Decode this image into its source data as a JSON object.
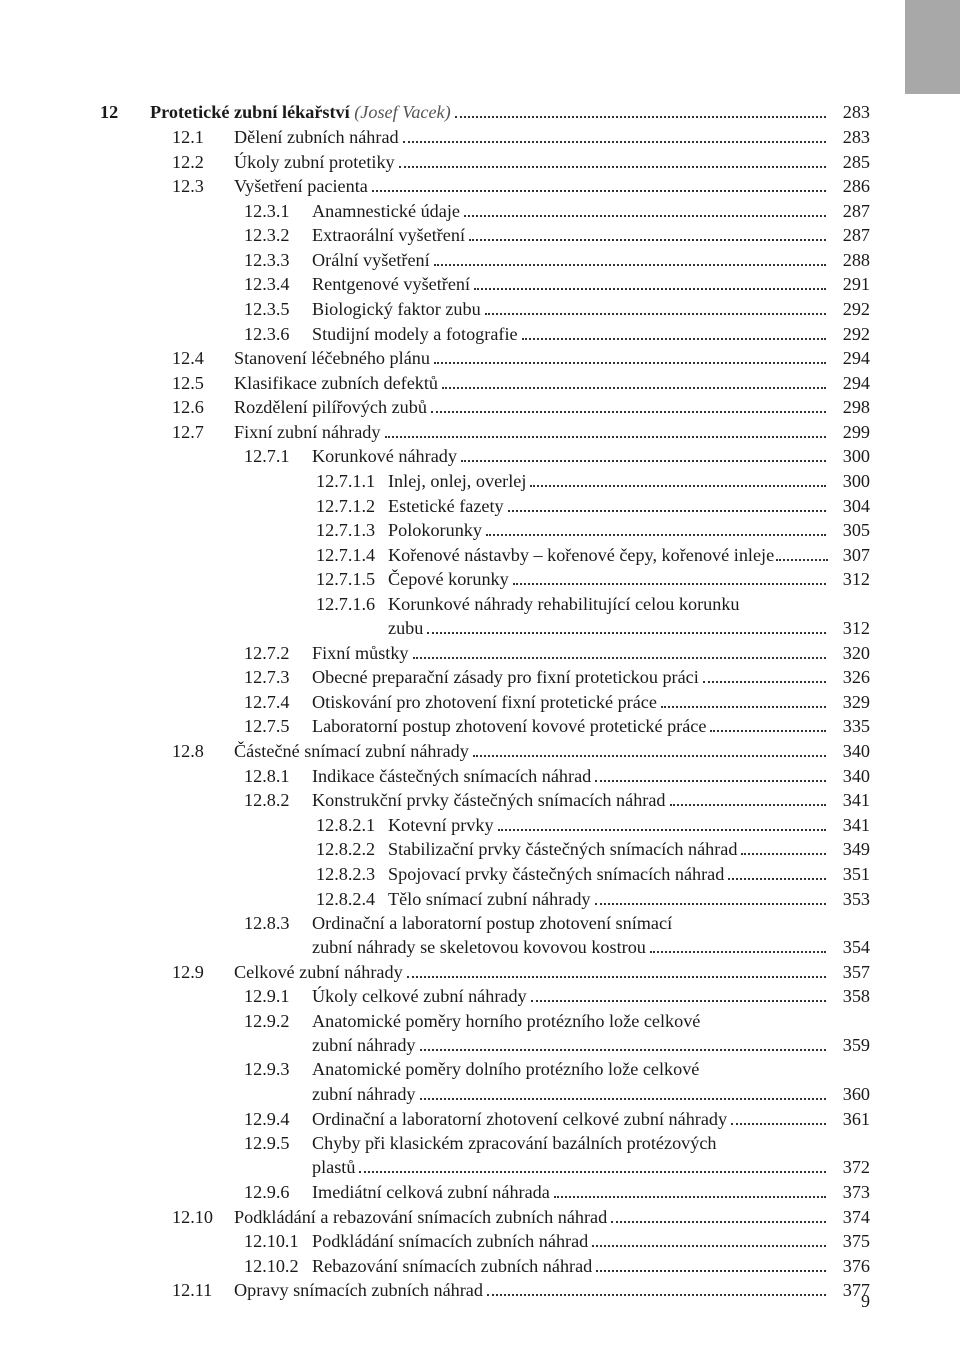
{
  "page_number": "9",
  "tab_color": "#a8a8a8",
  "chapter": {
    "num": "12",
    "title": "Protetické zubní lékařství",
    "author": "(Josef Vacek)",
    "page": "283"
  },
  "entries": [
    {
      "lvl": 1,
      "num": "12.1",
      "title": "Dělení zubních náhrad",
      "page": "283"
    },
    {
      "lvl": 1,
      "num": "12.2",
      "title": "Úkoly zubní protetiky",
      "page": "285"
    },
    {
      "lvl": 1,
      "num": "12.3",
      "title": "Vyšetření pacienta",
      "page": "286"
    },
    {
      "lvl": 2,
      "num": "12.3.1",
      "title": "Anamnestické údaje",
      "page": "287"
    },
    {
      "lvl": 2,
      "num": "12.3.2",
      "title": "Extraorální vyšetření",
      "page": "287"
    },
    {
      "lvl": 2,
      "num": "12.3.3",
      "title": "Orální vyšetření",
      "page": "288"
    },
    {
      "lvl": 2,
      "num": "12.3.4",
      "title": "Rentgenové vyšetření",
      "page": "291"
    },
    {
      "lvl": 2,
      "num": "12.3.5",
      "title": "Biologický faktor zubu",
      "page": "292"
    },
    {
      "lvl": 2,
      "num": "12.3.6",
      "title": "Studijní modely a fotografie",
      "page": "292"
    },
    {
      "lvl": 1,
      "num": "12.4",
      "title": "Stanovení léčebného plánu",
      "page": "294"
    },
    {
      "lvl": 1,
      "num": "12.5",
      "title": "Klasifikace zubních defektů",
      "page": "294"
    },
    {
      "lvl": 1,
      "num": "12.6",
      "title": "Rozdělení pilířových zubů",
      "page": "298"
    },
    {
      "lvl": 1,
      "num": "12.7",
      "title": "Fixní zubní náhrady",
      "page": "299"
    },
    {
      "lvl": 2,
      "num": "12.7.1",
      "title": "Korunkové náhrady",
      "page": "300"
    },
    {
      "lvl": 3,
      "num": "12.7.1.1",
      "title": "Inlej, onlej, overlej",
      "page": "300"
    },
    {
      "lvl": 3,
      "num": "12.7.1.2",
      "title": "Estetické fazety",
      "page": "304"
    },
    {
      "lvl": 3,
      "num": "12.7.1.3",
      "title": "Polokorunky",
      "page": "305"
    },
    {
      "lvl": 3,
      "num": "12.7.1.4",
      "title": "Kořenové nástavby – kořenové čepy, kořenové inleje",
      "page": "307",
      "tight": true
    },
    {
      "lvl": 3,
      "num": "12.7.1.5",
      "title": "Čepové korunky",
      "page": "312"
    },
    {
      "lvl": 3,
      "num": "12.7.1.6",
      "title": "Korunkové náhrady rehabilitující celou korunku",
      "wrap": true
    },
    {
      "lvl": "c3",
      "title": "zubu",
      "page": "312"
    },
    {
      "lvl": 2,
      "num": "12.7.2",
      "title": "Fixní můstky",
      "page": "320"
    },
    {
      "lvl": 2,
      "num": "12.7.3",
      "title": "Obecné preparační zásady pro fixní protetickou práci",
      "page": "326"
    },
    {
      "lvl": 2,
      "num": "12.7.4",
      "title": "Otiskování pro zhotovení fixní protetické práce",
      "page": "329"
    },
    {
      "lvl": 2,
      "num": "12.7.5",
      "title": "Laboratorní postup zhotovení kovové protetické práce",
      "page": "335"
    },
    {
      "lvl": 1,
      "num": "12.8",
      "title": "Částečné snímací zubní náhrady",
      "page": "340"
    },
    {
      "lvl": 2,
      "num": "12.8.1",
      "title": "Indikace částečných snímacích náhrad",
      "page": "340"
    },
    {
      "lvl": 2,
      "num": "12.8.2",
      "title": "Konstrukční prvky částečných snímacích náhrad",
      "page": "341"
    },
    {
      "lvl": 3,
      "num": "12.8.2.1",
      "title": "Kotevní prvky",
      "page": "341"
    },
    {
      "lvl": 3,
      "num": "12.8.2.2",
      "title": "Stabilizační prvky částečných snímacích náhrad",
      "page": "349"
    },
    {
      "lvl": 3,
      "num": "12.8.2.3",
      "title": "Spojovací prvky částečných snímacích náhrad",
      "page": "351"
    },
    {
      "lvl": 3,
      "num": "12.8.2.4",
      "title": "Tělo snímací zubní náhrady",
      "page": "353"
    },
    {
      "lvl": 2,
      "num": "12.8.3",
      "title": "Ordinační a laboratorní postup zhotovení snímací",
      "wrap": true
    },
    {
      "lvl": "c2",
      "title": "zubní náhrady se skeletovou kovovou kostrou",
      "page": "354"
    },
    {
      "lvl": 1,
      "num": "12.9",
      "title": "Celkové zubní náhrady",
      "page": "357"
    },
    {
      "lvl": 2,
      "num": "12.9.1",
      "title": "Úkoly celkové zubní náhrady",
      "page": "358"
    },
    {
      "lvl": 2,
      "num": "12.9.2",
      "title": "Anatomické poměry horního protézního lože celkové",
      "wrap": true
    },
    {
      "lvl": "c2",
      "title": "zubní náhrady",
      "page": "359"
    },
    {
      "lvl": 2,
      "num": "12.9.3",
      "title": "Anatomické poměry dolního protézního lože celkové",
      "wrap": true
    },
    {
      "lvl": "c2",
      "title": "zubní náhrady",
      "page": "360"
    },
    {
      "lvl": 2,
      "num": "12.9.4",
      "title": "Ordinační a laboratorní zhotovení celkové zubní náhrady",
      "page": "361"
    },
    {
      "lvl": 2,
      "num": "12.9.5",
      "title": "Chyby při klasickém zpracování bazálních protézových",
      "wrap": true
    },
    {
      "lvl": "c2",
      "title": "plastů",
      "page": "372"
    },
    {
      "lvl": 2,
      "num": "12.9.6",
      "title": "Imediátní celková zubní náhrada",
      "page": "373"
    },
    {
      "lvl": 1,
      "num": "12.10",
      "title": "Podkládání a rebazování snímacích zubních náhrad",
      "page": "374"
    },
    {
      "lvl": 2,
      "num": "12.10.1",
      "title": "Podkládání snímacích zubních náhrad",
      "page": "375"
    },
    {
      "lvl": 2,
      "num": "12.10.2",
      "title": "Rebazování snímacích zubních náhrad",
      "page": "376"
    },
    {
      "lvl": 1,
      "num": "12.11",
      "title": "Opravy snímacích zubních náhrad",
      "page": "377"
    }
  ]
}
